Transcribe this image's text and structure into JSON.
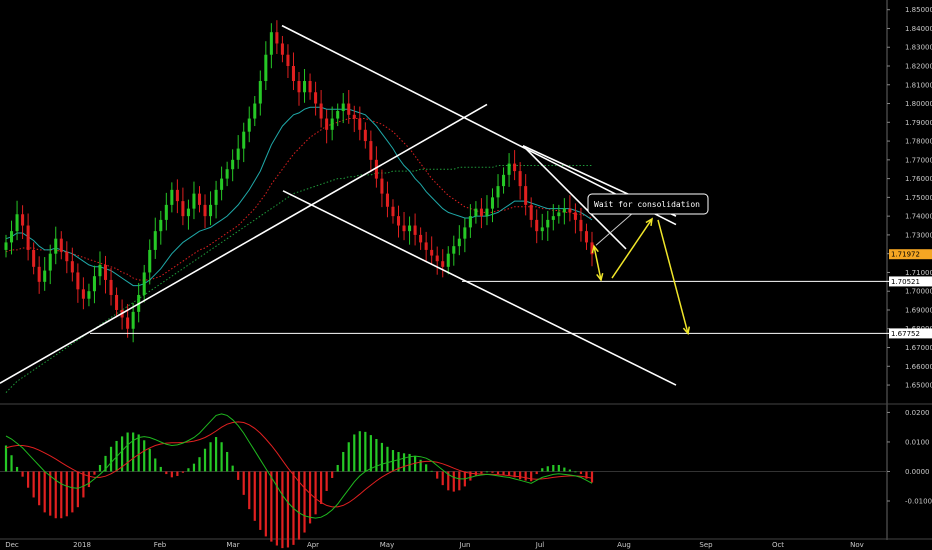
{
  "chart_data": [
    {
      "type": "candlestick",
      "panel": "price",
      "y_ticks": [
        "1.85000",
        "1.84000",
        "1.83000",
        "1.82000",
        "1.81000",
        "1.80000",
        "1.79000",
        "1.78000",
        "1.77000",
        "1.76000",
        "1.75000",
        "1.74000",
        "1.73000",
        "1.72000",
        "1.71000",
        "1.70000",
        "1.69000",
        "1.68000",
        "1.67000",
        "1.66000",
        "1.65000"
      ],
      "ylim": [
        1.6447,
        1.8525
      ],
      "x_ticks": [
        "Dec",
        "2018",
        "Feb",
        "Mar",
        "Apr",
        "May",
        "Jun",
        "Jul",
        "Aug",
        "Sep",
        "Oct",
        "Nov"
      ],
      "series": [
        {
          "name": "price",
          "values": [
            1.726,
            1.732,
            1.741,
            1.735,
            1.722,
            1.713,
            1.705,
            1.711,
            1.72,
            1.728,
            1.721,
            1.716,
            1.71,
            1.701,
            1.696,
            1.7,
            1.708,
            1.714,
            1.706,
            1.698,
            1.69,
            1.686,
            1.68,
            1.689,
            1.698,
            1.71,
            1.722,
            1.732,
            1.738,
            1.746,
            1.754,
            1.748,
            1.74,
            1.744,
            1.752,
            1.746,
            1.74,
            1.746,
            1.754,
            1.76,
            1.765,
            1.77,
            1.776,
            1.785,
            1.792,
            1.8,
            1.812,
            1.826,
            1.838,
            1.832,
            1.826,
            1.82,
            1.812,
            1.806,
            1.812,
            1.806,
            1.8,
            1.792,
            1.786,
            1.792,
            1.796,
            1.8,
            1.794,
            1.792,
            1.786,
            1.78,
            1.77,
            1.76,
            1.752,
            1.745,
            1.74,
            1.735,
            1.732,
            1.735,
            1.73,
            1.726,
            1.722,
            1.719,
            1.716,
            1.713,
            1.72,
            1.724,
            1.728,
            1.734,
            1.74,
            1.744,
            1.74,
            1.744,
            1.75,
            1.756,
            1.762,
            1.768,
            1.764,
            1.756,
            1.746,
            1.738,
            1.732,
            1.734,
            1.738,
            1.74,
            1.742,
            1.744,
            1.742,
            1.738,
            1.732,
            1.726,
            1.7197
          ]
        },
        {
          "name": "ema_fast",
          "values": [
            1.728,
            1.729,
            1.731,
            1.731,
            1.729,
            1.727,
            1.724,
            1.722,
            1.722,
            1.723,
            1.722,
            1.721,
            1.72,
            1.718,
            1.716,
            1.714,
            1.713,
            1.713,
            1.712,
            1.711,
            1.709,
            1.707,
            1.705,
            1.703,
            1.703,
            1.704,
            1.706,
            1.709,
            1.712,
            1.716,
            1.72,
            1.723,
            1.726,
            1.728,
            1.73,
            1.732,
            1.733,
            1.734,
            1.736,
            1.738,
            1.74,
            1.743,
            1.746,
            1.75,
            1.754,
            1.759,
            1.764,
            1.771,
            1.778,
            1.783,
            1.788,
            1.791,
            1.794,
            1.795,
            1.797,
            1.798,
            1.798,
            1.798,
            1.797,
            1.797,
            1.797,
            1.797,
            1.797,
            1.796,
            1.795,
            1.794,
            1.791,
            1.788,
            1.784,
            1.78,
            1.776,
            1.771,
            1.767,
            1.764,
            1.76,
            1.757,
            1.753,
            1.75,
            1.747,
            1.744,
            1.742,
            1.741,
            1.74,
            1.739,
            1.739,
            1.74,
            1.74,
            1.74,
            1.741,
            1.742,
            1.744,
            1.746,
            1.748,
            1.748,
            1.748,
            1.747,
            1.746,
            1.745,
            1.744,
            1.744,
            1.744,
            1.744,
            1.744,
            1.743,
            1.742,
            1.74,
            1.738
          ]
        },
        {
          "name": "sma_mid",
          "values": [
            1.721,
            1.722,
            1.722,
            1.723,
            1.723,
            1.723,
            1.722,
            1.722,
            1.722,
            1.722,
            1.721,
            1.721,
            1.72,
            1.719,
            1.718,
            1.717,
            1.716,
            1.715,
            1.714,
            1.713,
            1.712,
            1.71,
            1.709,
            1.707,
            1.706,
            1.706,
            1.706,
            1.707,
            1.708,
            1.71,
            1.712,
            1.714,
            1.716,
            1.718,
            1.72,
            1.722,
            1.723,
            1.725,
            1.727,
            1.729,
            1.731,
            1.733,
            1.735,
            1.738,
            1.741,
            1.744,
            1.748,
            1.752,
            1.757,
            1.761,
            1.765,
            1.769,
            1.773,
            1.776,
            1.779,
            1.782,
            1.784,
            1.786,
            1.788,
            1.789,
            1.79,
            1.791,
            1.792,
            1.792,
            1.792,
            1.792,
            1.791,
            1.79,
            1.789,
            1.787,
            1.785,
            1.782,
            1.779,
            1.776,
            1.772,
            1.768,
            1.764,
            1.76,
            1.757,
            1.754,
            1.751,
            1.749,
            1.747,
            1.745,
            1.744,
            1.743,
            1.742,
            1.742,
            1.742,
            1.743,
            1.743,
            1.744,
            1.745,
            1.745,
            1.745,
            1.745,
            1.745,
            1.744,
            1.744,
            1.743,
            1.743,
            1.742,
            1.742,
            1.741,
            1.741,
            1.74,
            1.739
          ]
        },
        {
          "name": "sma_slow",
          "values": [
            1.646,
            1.649,
            1.652,
            1.654,
            1.656,
            1.658,
            1.66,
            1.662,
            1.664,
            1.666,
            1.668,
            1.67,
            1.672,
            1.674,
            1.676,
            1.678,
            1.68,
            1.682,
            1.684,
            1.686,
            1.688,
            1.69,
            1.692,
            1.694,
            1.696,
            1.698,
            1.7,
            1.702,
            1.704,
            1.706,
            1.708,
            1.71,
            1.712,
            1.714,
            1.716,
            1.718,
            1.72,
            1.722,
            1.724,
            1.726,
            1.728,
            1.73,
            1.732,
            1.734,
            1.736,
            1.738,
            1.74,
            1.742,
            1.744,
            1.746,
            1.748,
            1.75,
            1.752,
            1.753,
            1.754,
            1.755,
            1.756,
            1.757,
            1.758,
            1.759,
            1.76,
            1.76,
            1.761,
            1.761,
            1.762,
            1.762,
            1.762,
            1.763,
            1.763,
            1.763,
            1.764,
            1.764,
            1.764,
            1.764,
            1.764,
            1.765,
            1.765,
            1.765,
            1.765,
            1.765,
            1.765,
            1.765,
            1.766,
            1.766,
            1.766,
            1.766,
            1.766,
            1.766,
            1.766,
            1.767,
            1.767,
            1.767,
            1.767,
            1.767,
            1.767,
            1.767,
            1.767,
            1.767,
            1.767,
            1.767,
            1.767,
            1.767,
            1.767,
            1.767,
            1.767,
            1.767,
            1.767
          ]
        }
      ],
      "price_labels": [
        {
          "text": "1.71972",
          "value": 1.71972,
          "color": "#f5a623"
        },
        {
          "text": "1.70521",
          "value": 1.70521,
          "color": "#ffffff"
        },
        {
          "text": "1.67752",
          "value": 1.67752,
          "color": "#ffffff"
        }
      ],
      "annotations": [
        {
          "text": "Wait for consolidation"
        }
      ],
      "colors": {
        "up": "#26c826",
        "down": "#e02020",
        "ema_fast": "#1fa8a8",
        "sma_mid": "#e02020",
        "sma_slow": "#1f9a3a",
        "lines": "#ffffff",
        "arrows": "#f0e62a",
        "grid_axis": "#555555"
      }
    },
    {
      "type": "macd",
      "panel": "indicator",
      "y_ticks": [
        "0.0200",
        "0.0100",
        "0.0000",
        "-0.0100"
      ],
      "ylim": [
        -0.0205,
        0.0215
      ],
      "series": [
        {
          "name": "macd",
          "values": [
            0.012,
            0.011,
            0.0095,
            0.008,
            0.006,
            0.004,
            0.002,
            0.0,
            -0.0015,
            -0.003,
            -0.0042,
            -0.005,
            -0.0055,
            -0.0057,
            -0.005,
            -0.004,
            -0.0025,
            -0.001,
            0.0008,
            0.003,
            0.005,
            0.007,
            0.009,
            0.0105,
            0.0115,
            0.0118,
            0.0115,
            0.0108,
            0.01,
            0.0092,
            0.0088,
            0.009,
            0.0096,
            0.0105,
            0.0115,
            0.013,
            0.015,
            0.017,
            0.019,
            0.0195,
            0.019,
            0.0175,
            0.0155,
            0.013,
            0.01,
            0.007,
            0.004,
            0.001,
            -0.002,
            -0.005,
            -0.008,
            -0.0105,
            -0.0125,
            -0.014,
            -0.015,
            -0.0155,
            -0.0158,
            -0.0155,
            -0.0145,
            -0.013,
            -0.011,
            -0.0085,
            -0.006,
            -0.0035,
            -0.0015,
            0.0,
            0.001,
            0.0018,
            0.0025,
            0.003,
            0.0035,
            0.004,
            0.0045,
            0.005,
            0.0052,
            0.005,
            0.0045,
            0.0035,
            0.002,
            0.0005,
            -0.001,
            -0.002,
            -0.0025,
            -0.0025,
            -0.002,
            -0.0015,
            -0.0012,
            -0.001,
            -0.0012,
            -0.0015,
            -0.0018,
            -0.002,
            -0.0025,
            -0.003,
            -0.0035,
            -0.004,
            -0.003,
            -0.002,
            -0.0015,
            -0.001,
            -0.0008,
            -0.001,
            -0.0012,
            -0.0015,
            -0.002,
            -0.003,
            -0.004
          ]
        },
        {
          "name": "signal",
          "values": [
            0.008,
            0.0085,
            0.0088,
            0.0088,
            0.0085,
            0.008,
            0.0072,
            0.0063,
            0.0053,
            0.0042,
            0.003,
            0.0019,
            0.0008,
            -0.0002,
            -0.001,
            -0.0016,
            -0.002,
            -0.002,
            -0.0016,
            -0.0008,
            0.0003,
            0.0016,
            0.003,
            0.0045,
            0.0058,
            0.007,
            0.008,
            0.0088,
            0.0093,
            0.0096,
            0.0097,
            0.0097,
            0.0098,
            0.01,
            0.0103,
            0.0108,
            0.0115,
            0.0125,
            0.0137,
            0.015,
            0.016,
            0.0166,
            0.0168,
            0.0166,
            0.0158,
            0.0146,
            0.013,
            0.011,
            0.0088,
            0.0064,
            0.0038,
            0.0012,
            -0.0012,
            -0.0035,
            -0.0056,
            -0.0075,
            -0.0092,
            -0.0105,
            -0.0115,
            -0.012,
            -0.012,
            -0.0115,
            -0.0105,
            -0.0092,
            -0.0077,
            -0.0061,
            -0.0046,
            -0.0032,
            -0.0019,
            -0.0008,
            0.0002,
            0.001,
            0.0017,
            0.0023,
            0.0028,
            0.0032,
            0.0034,
            0.0034,
            0.0031,
            0.0026,
            0.0019,
            0.0011,
            0.0004,
            -0.0002,
            -0.0006,
            -0.0008,
            -0.0009,
            -0.001,
            -0.001,
            -0.0011,
            -0.0012,
            -0.0014,
            -0.0016,
            -0.0018,
            -0.0021,
            -0.0025,
            -0.0026,
            -0.0025,
            -0.0023,
            -0.002,
            -0.0018,
            -0.0016,
            -0.0015,
            -0.0015,
            -0.0016,
            -0.0019,
            -0.0023
          ]
        }
      ],
      "colors": {
        "macd": "#1fb81f",
        "signal": "#e02020",
        "hist_up": "#26c826",
        "hist_down": "#e02020"
      }
    }
  ]
}
